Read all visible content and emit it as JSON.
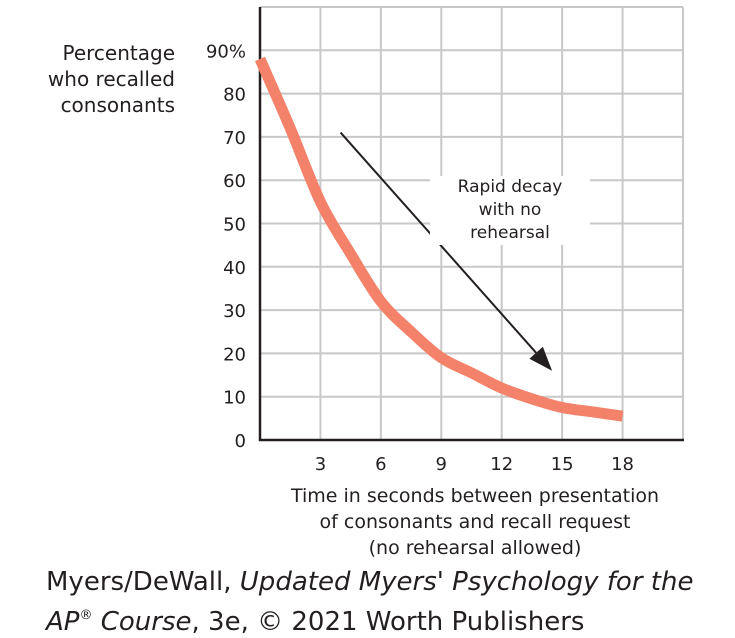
{
  "chart_data": {
    "type": "line",
    "ylabel": [
      "Percentage",
      "who recalled",
      "consonants"
    ],
    "xlabel": [
      "Time in seconds between presentation",
      "of consonants and recall request",
      "(no rehearsal allowed)"
    ],
    "x_ticks": [
      3,
      6,
      9,
      12,
      15,
      18
    ],
    "y_ticks": [
      0,
      10,
      20,
      30,
      40,
      50,
      60,
      70,
      80,
      90
    ],
    "y_tick_labels": [
      "0",
      "10",
      "20",
      "30",
      "40",
      "50",
      "60",
      "70",
      "80",
      "90%"
    ],
    "xlim": [
      0,
      21
    ],
    "ylim": [
      0,
      100
    ],
    "grid": true,
    "series": [
      {
        "x": [
          0,
          1.5,
          3,
          4.5,
          6,
          7.5,
          9,
          10.5,
          12,
          13.5,
          15,
          16.5,
          18
        ],
        "y": [
          88,
          72,
          55,
          43,
          32,
          25,
          19,
          15.5,
          12,
          9.5,
          7.5,
          6.5,
          5.5
        ]
      }
    ],
    "annotation": {
      "lines": [
        "Rapid decay",
        "with no",
        "rehearsal"
      ],
      "arrow_from": [
        4,
        71
      ],
      "arrow_to": [
        14.5,
        16
      ]
    },
    "colors": {
      "line": "#f4826b",
      "grid": "#c8c8c8",
      "axis": "#231f20",
      "arrow": "#231f20"
    }
  },
  "credit": {
    "line1_a": "Myers/DeWall, ",
    "line1_b": "Updated Myers' Psychology for the",
    "line2_a": "AP",
    "line2_reg": "®",
    "line2_b": " Course",
    "line2_c": ", 3e, © 2021 Worth Publishers"
  }
}
